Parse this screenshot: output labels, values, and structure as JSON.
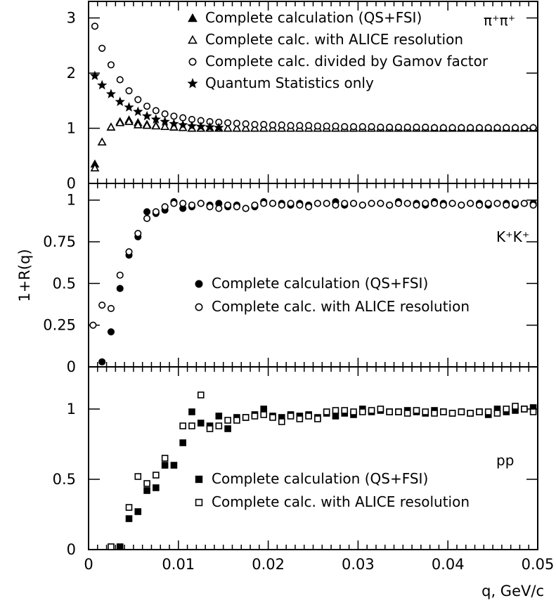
{
  "chart_data": {
    "type": "scatter",
    "xlabel": "q, GeV/c",
    "ylabel": "1+R(q)",
    "xlim": [
      0,
      0.05
    ],
    "xticks": [
      "0",
      "0.01",
      "0.02",
      "0.03",
      "0.04",
      "0.05"
    ],
    "grid": false,
    "panels": [
      {
        "id": "pipi",
        "label": "π⁺π⁺",
        "ylim": [
          0,
          3.3
        ],
        "yticks": [
          {
            "v": 0,
            "t": "0"
          },
          {
            "v": 1,
            "t": "1"
          },
          {
            "v": 2,
            "t": "2"
          },
          {
            "v": 3,
            "t": "3"
          }
        ],
        "legend_position": "top-right",
        "series": [
          {
            "name": "Complete calculation (QS+FSI)",
            "marker": "triangle-filled",
            "x": [
              0.0007,
              0.0015,
              0.0025,
              0.0035,
              0.0045,
              0.0055,
              0.0065,
              0.0075,
              0.0085,
              0.0095,
              0.0105,
              0.0115,
              0.0125,
              0.0135,
              0.0145,
              0.0155,
              0.0165,
              0.0175,
              0.0185,
              0.0195,
              0.0205,
              0.0215,
              0.0225,
              0.0235,
              0.0245,
              0.0255,
              0.0265,
              0.0275,
              0.0285,
              0.0295,
              0.0305,
              0.0315,
              0.0325,
              0.0335,
              0.0345,
              0.0355,
              0.0365,
              0.0375,
              0.0385,
              0.0395,
              0.0405,
              0.0415,
              0.0425,
              0.0435,
              0.0445,
              0.0455,
              0.0465,
              0.0475,
              0.0485,
              0.0495
            ],
            "y": [
              0.35,
              0.75,
              1.02,
              1.12,
              1.15,
              1.1,
              1.07,
              1.05,
              1.03,
              1.02,
              1.01,
              1.0,
              1.0,
              1.0,
              1.0,
              1.0,
              1.0,
              1.0,
              1.0,
              1.0,
              1.0,
              1.0,
              1.0,
              1.0,
              1.0,
              1.0,
              1.0,
              1.0,
              1.0,
              1.0,
              1.0,
              1.0,
              1.0,
              1.0,
              1.0,
              1.0,
              1.0,
              1.0,
              1.0,
              1.0,
              1.0,
              1.0,
              1.0,
              1.0,
              1.0,
              1.0,
              1.0,
              1.0,
              1.0,
              1.0
            ]
          },
          {
            "name": "Complete calc. with ALICE resolution",
            "marker": "triangle-open",
            "x": [
              0.0007,
              0.0015,
              0.0025,
              0.0035,
              0.0045,
              0.0055,
              0.0065,
              0.0075,
              0.0085,
              0.0095,
              0.0105,
              0.0115,
              0.0125,
              0.0135,
              0.0145,
              0.0155,
              0.0165,
              0.0175,
              0.0185,
              0.0195,
              0.0205,
              0.0215,
              0.0225,
              0.0235,
              0.0245,
              0.0255,
              0.0265,
              0.0275,
              0.0285,
              0.0295,
              0.0305,
              0.0315,
              0.0325,
              0.0335,
              0.0345,
              0.0355,
              0.0365,
              0.0375,
              0.0385,
              0.0395,
              0.0405,
              0.0415,
              0.0425,
              0.0435,
              0.0445,
              0.0455,
              0.0465,
              0.0475,
              0.0485,
              0.0495
            ],
            "y": [
              0.28,
              0.75,
              1.02,
              1.1,
              1.12,
              1.06,
              1.05,
              1.04,
              1.03,
              1.02,
              1.01,
              1.0,
              1.0,
              1.0,
              1.0,
              1.0,
              1.0,
              1.0,
              1.0,
              1.0,
              1.0,
              1.0,
              1.0,
              1.0,
              1.0,
              1.0,
              1.0,
              1.0,
              1.0,
              1.0,
              1.0,
              1.0,
              1.0,
              1.0,
              1.0,
              1.0,
              1.0,
              1.0,
              1.0,
              1.0,
              1.0,
              1.0,
              1.0,
              1.0,
              1.0,
              1.0,
              1.0,
              1.0,
              1.0,
              1.0
            ]
          },
          {
            "name": "Complete calc. divided by Gamov factor",
            "marker": "circle-open",
            "x": [
              0.0007,
              0.0015,
              0.0025,
              0.0035,
              0.0045,
              0.0055,
              0.0065,
              0.0075,
              0.0085,
              0.0095,
              0.0105,
              0.0115,
              0.0125,
              0.0135,
              0.0145,
              0.0155,
              0.0165,
              0.0175,
              0.0185,
              0.0195,
              0.0205,
              0.0215,
              0.0225,
              0.0235,
              0.0245,
              0.0255,
              0.0265,
              0.0275,
              0.0285,
              0.0295,
              0.0305,
              0.0315,
              0.0325,
              0.0335,
              0.0345,
              0.0355,
              0.0365,
              0.0375,
              0.0385,
              0.0395,
              0.0405,
              0.0415,
              0.0425,
              0.0435,
              0.0445,
              0.0455,
              0.0465,
              0.0475,
              0.0485,
              0.0495
            ],
            "y": [
              2.85,
              2.45,
              2.15,
              1.88,
              1.68,
              1.52,
              1.4,
              1.32,
              1.26,
              1.22,
              1.19,
              1.16,
              1.14,
              1.12,
              1.11,
              1.1,
              1.09,
              1.08,
              1.07,
              1.07,
              1.06,
              1.06,
              1.05,
              1.05,
              1.05,
              1.04,
              1.04,
              1.04,
              1.03,
              1.03,
              1.03,
              1.03,
              1.02,
              1.02,
              1.02,
              1.02,
              1.02,
              1.02,
              1.01,
              1.01,
              1.01,
              1.01,
              1.01,
              1.01,
              1.01,
              1.01,
              1.01,
              1.01,
              1.01,
              1.01
            ]
          },
          {
            "name": "Quantum Statistics only",
            "marker": "star",
            "x": [
              0.0007,
              0.0015,
              0.0025,
              0.0035,
              0.0045,
              0.0055,
              0.0065,
              0.0075,
              0.0085,
              0.0095,
              0.0105,
              0.0115,
              0.0125,
              0.0135,
              0.0145
            ],
            "y": [
              1.95,
              1.78,
              1.62,
              1.48,
              1.38,
              1.3,
              1.22,
              1.16,
              1.12,
              1.08,
              1.06,
              1.04,
              1.03,
              1.02,
              1.01
            ]
          }
        ]
      },
      {
        "id": "kk",
        "label": "K⁺K⁺",
        "ylim": [
          0,
          1.1
        ],
        "yticks": [
          {
            "v": 0,
            "t": "0"
          },
          {
            "v": 0.25,
            "t": "0.25"
          },
          {
            "v": 0.5,
            "t": "0.5"
          },
          {
            "v": 0.75,
            "t": "0.75"
          },
          {
            "v": 1,
            "t": "1"
          }
        ],
        "legend_position": "lower-right",
        "series": [
          {
            "name": "Complete calculation (QS+FSI)",
            "marker": "circle-filled",
            "x": [
              0.0015,
              0.0025,
              0.0035,
              0.0045,
              0.0055,
              0.0065,
              0.0075,
              0.0085,
              0.0095,
              0.0105,
              0.0115,
              0.0125,
              0.0135,
              0.0145,
              0.0155,
              0.0165,
              0.0175,
              0.0185,
              0.0195,
              0.0205,
              0.0215,
              0.0225,
              0.0235,
              0.0245,
              0.0255,
              0.0265,
              0.0275,
              0.0285,
              0.0295,
              0.0305,
              0.0315,
              0.0325,
              0.0335,
              0.0345,
              0.0355,
              0.0365,
              0.0375,
              0.0385,
              0.0395,
              0.0405,
              0.0415,
              0.0425,
              0.0435,
              0.0445,
              0.0455,
              0.0465,
              0.0475,
              0.0485,
              0.0495
            ],
            "y": [
              0.03,
              0.21,
              0.47,
              0.67,
              0.78,
              0.93,
              0.92,
              0.94,
              0.99,
              0.95,
              0.96,
              0.98,
              0.97,
              0.98,
              0.96,
              0.97,
              0.95,
              0.96,
              0.99,
              0.98,
              0.98,
              0.97,
              0.98,
              0.97,
              0.98,
              0.98,
              0.99,
              0.97,
              0.98,
              0.97,
              0.98,
              0.98,
              0.97,
              0.99,
              0.98,
              0.98,
              0.97,
              0.99,
              0.98,
              0.98,
              0.97,
              0.98,
              0.98,
              0.97,
              0.98,
              0.98,
              0.97,
              0.98,
              0.98
            ]
          },
          {
            "name": "Complete calc. with ALICE resolution",
            "marker": "circle-open",
            "x": [
              0.0005,
              0.0015,
              0.0025,
              0.0035,
              0.0045,
              0.0055,
              0.0065,
              0.0075,
              0.0085,
              0.0095,
              0.0105,
              0.0115,
              0.0125,
              0.0135,
              0.0145,
              0.0155,
              0.0165,
              0.0175,
              0.0185,
              0.0195,
              0.0205,
              0.0215,
              0.0225,
              0.0235,
              0.0245,
              0.0255,
              0.0265,
              0.0275,
              0.0285,
              0.0295,
              0.0305,
              0.0315,
              0.0325,
              0.0335,
              0.0345,
              0.0355,
              0.0365,
              0.0375,
              0.0385,
              0.0395,
              0.0405,
              0.0415,
              0.0425,
              0.0435,
              0.0445,
              0.0455,
              0.0465,
              0.0475,
              0.0485,
              0.0495
            ],
            "y": [
              0.25,
              0.37,
              0.35,
              0.55,
              0.69,
              0.8,
              0.89,
              0.93,
              0.96,
              0.98,
              0.98,
              0.97,
              0.98,
              0.96,
              0.95,
              0.97,
              0.96,
              0.95,
              0.97,
              0.98,
              0.98,
              0.97,
              0.98,
              0.97,
              0.96,
              0.98,
              0.98,
              0.97,
              0.98,
              0.98,
              0.97,
              0.98,
              0.98,
              0.97,
              0.98,
              0.98,
              0.97,
              0.98,
              0.98,
              0.97,
              0.98,
              0.97,
              0.98,
              0.97,
              0.98,
              0.98,
              0.97,
              0.98,
              0.98,
              0.97
            ]
          }
        ]
      },
      {
        "id": "pp",
        "label": "pp",
        "ylim": [
          0,
          1.3
        ],
        "yticks": [
          {
            "v": 0,
            "t": "0"
          },
          {
            "v": 0.5,
            "t": "0.5"
          },
          {
            "v": 1,
            "t": "1"
          }
        ],
        "legend_position": "lower-right",
        "series": [
          {
            "name": "Complete calculation (QS+FSI)",
            "marker": "square-filled",
            "x": [
              0.0035,
              0.0045,
              0.0055,
              0.0065,
              0.0075,
              0.0085,
              0.0095,
              0.0105,
              0.0115,
              0.0125,
              0.0135,
              0.0145,
              0.0155,
              0.0165,
              0.0175,
              0.0185,
              0.0195,
              0.0205,
              0.0215,
              0.0225,
              0.0235,
              0.0245,
              0.0255,
              0.0265,
              0.0275,
              0.0285,
              0.0295,
              0.0305,
              0.0315,
              0.0325,
              0.0335,
              0.0345,
              0.0355,
              0.0365,
              0.0375,
              0.0385,
              0.0395,
              0.0405,
              0.0415,
              0.0425,
              0.0435,
              0.0445,
              0.0455,
              0.0465,
              0.0475,
              0.0485,
              0.0495
            ],
            "y": [
              0.02,
              0.22,
              0.27,
              0.42,
              0.44,
              0.6,
              0.6,
              0.76,
              0.98,
              0.9,
              0.88,
              0.95,
              0.86,
              0.94,
              0.94,
              0.96,
              1.0,
              0.95,
              0.94,
              0.96,
              0.95,
              0.96,
              0.94,
              0.97,
              0.95,
              0.97,
              0.96,
              1.0,
              0.98,
              0.99,
              0.98,
              0.98,
              0.99,
              0.98,
              0.97,
              0.99,
              0.98,
              0.97,
              0.98,
              0.97,
              0.98,
              0.96,
              1.0,
              0.98,
              0.99,
              1.0,
              1.01
            ]
          },
          {
            "name": "Complete calc. with ALICE resolution",
            "marker": "square-open",
            "x": [
              0.0025,
              0.0045,
              0.0055,
              0.0065,
              0.0075,
              0.0085,
              0.0105,
              0.0115,
              0.0125,
              0.0135,
              0.0145,
              0.0155,
              0.0165,
              0.0175,
              0.0185,
              0.0195,
              0.0205,
              0.0215,
              0.0225,
              0.0235,
              0.0245,
              0.0255,
              0.0265,
              0.0275,
              0.0285,
              0.0295,
              0.0305,
              0.0315,
              0.0325,
              0.0335,
              0.0345,
              0.0355,
              0.0365,
              0.0375,
              0.0385,
              0.0395,
              0.0405,
              0.0415,
              0.0425,
              0.0435,
              0.0445,
              0.0455,
              0.0465,
              0.0475,
              0.0485,
              0.0495
            ],
            "y": [
              0.02,
              0.3,
              0.52,
              0.47,
              0.53,
              0.65,
              0.88,
              0.88,
              1.1,
              0.86,
              0.88,
              0.92,
              0.92,
              0.94,
              0.95,
              0.96,
              0.94,
              0.91,
              0.95,
              0.93,
              0.95,
              0.93,
              0.98,
              0.99,
              0.99,
              0.98,
              0.98,
              0.99,
              1.0,
              0.98,
              0.98,
              0.97,
              0.99,
              0.98,
              0.97,
              0.98,
              0.97,
              0.98,
              0.97,
              0.98,
              0.98,
              0.97,
              1.0,
              1.02,
              1.0,
              0.98
            ]
          }
        ]
      }
    ]
  }
}
